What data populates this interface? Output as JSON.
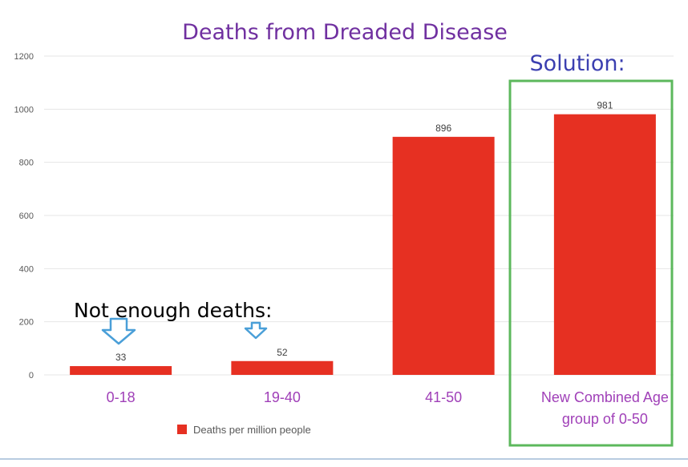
{
  "chart_data": {
    "type": "bar",
    "title": "Deaths from Dreaded Disease",
    "categories": [
      "0-18",
      "19-40",
      "41-50",
      "New Combined Age group of 0-50"
    ],
    "category_lines": [
      [
        "0-18"
      ],
      [
        "19-40"
      ],
      [
        "41-50"
      ],
      [
        "New Combined Age",
        "group of 0-50"
      ]
    ],
    "series": [
      {
        "name": "Deaths per million people",
        "values": [
          33,
          52,
          896,
          981
        ]
      }
    ],
    "data_labels": [
      "33",
      "52",
      "896",
      "981"
    ],
    "ylim": [
      0,
      1200
    ],
    "yticks": [
      0,
      200,
      400,
      600,
      800,
      1000,
      1200
    ],
    "xlabel": "",
    "ylabel": "",
    "grid": true,
    "legend": "bottom-left",
    "colors": {
      "bar": "#e63022",
      "title": "#7030a0",
      "category": "#a040b8",
      "solution": "#3b3fb0",
      "highlight_box": "#5cb85c",
      "arrow": "#4a9fd8",
      "grid": "#e6e6e6",
      "tick": "#595959"
    }
  },
  "annotations": {
    "solution_label": "Solution:",
    "not_enough_label": "Not enough deaths:"
  }
}
